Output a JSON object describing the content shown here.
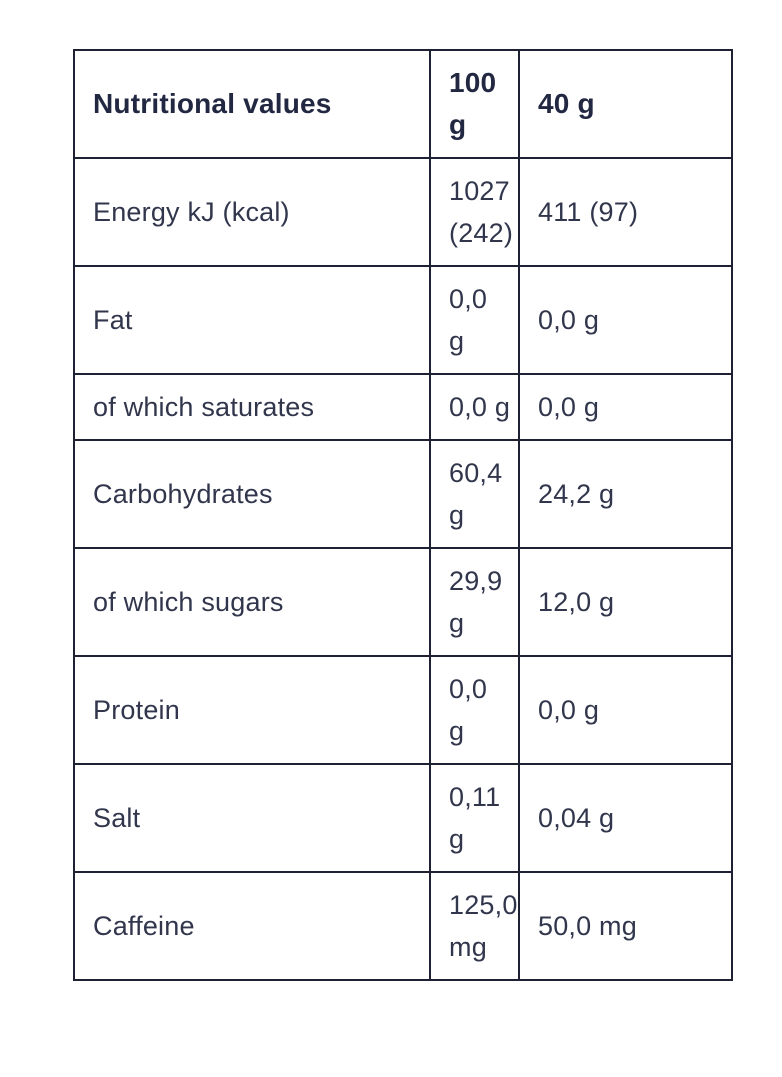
{
  "table": {
    "header": {
      "col_label": "Nutritional values",
      "col_100g": "100 g",
      "col_100g_lines": [
        "100",
        "g"
      ],
      "col_40g": "40 g"
    },
    "rows": [
      {
        "label": "Energy kJ (kcal)",
        "indent": false,
        "per100": "1027 (242)",
        "per100_lines": [
          "1027",
          "(242)"
        ],
        "per40": "411 (97)"
      },
      {
        "label": "Fat",
        "indent": false,
        "per100": "0,0 g",
        "per100_lines": [
          "0,0",
          "g"
        ],
        "per40": "0,0 g"
      },
      {
        "label": "of which saturates",
        "indent": true,
        "per100": "0,0 g",
        "per100_lines": [
          "0,0 g"
        ],
        "per40": "0,0 g"
      },
      {
        "label": "Carbohydrates",
        "indent": false,
        "per100": "60,4 g",
        "per100_lines": [
          "60,4",
          "g"
        ],
        "per40": "24,2 g"
      },
      {
        "label": "of which sugars",
        "indent": true,
        "per100": "29,9 g",
        "per100_lines": [
          "29,9",
          "g"
        ],
        "per40": "12,0 g"
      },
      {
        "label": "Protein",
        "indent": false,
        "per100": "0,0 g",
        "per100_lines": [
          "0,0",
          "g"
        ],
        "per40": "0,0 g"
      },
      {
        "label": "Salt",
        "indent": false,
        "per100": "0,11 g",
        "per100_lines": [
          "0,11",
          "g"
        ],
        "per40": "0,04 g"
      },
      {
        "label": "Caffeine",
        "indent": false,
        "per100": "125,0 mg",
        "per100_lines": [
          "125,0",
          "mg"
        ],
        "per40": "50,0 mg"
      }
    ],
    "colors": {
      "border": "#1d2133",
      "header_text": "#232842",
      "body_text": "#31364c",
      "background": "#ffffff"
    }
  }
}
